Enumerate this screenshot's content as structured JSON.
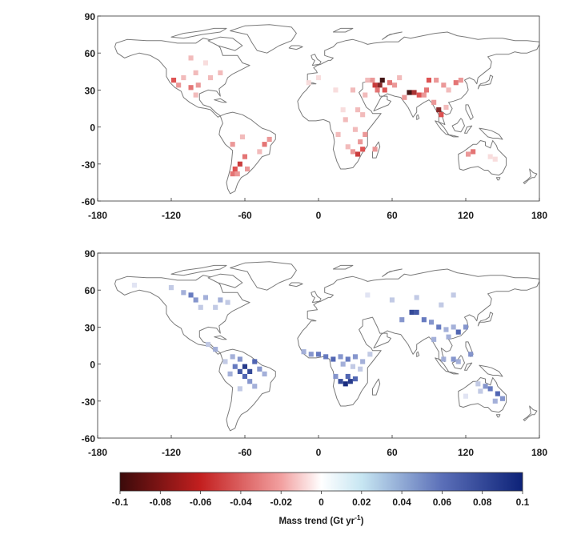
{
  "panels": [
    {
      "id": "loss",
      "x_ticks": [
        "-180",
        "-120",
        "-60",
        "0",
        "60",
        "120",
        "180"
      ],
      "x_tick_values": [
        -180,
        -120,
        -60,
        0,
        60,
        120,
        180
      ],
      "y_ticks": [
        "90",
        "60",
        "30",
        "0",
        "-30",
        "-60"
      ],
      "y_tick_values": [
        90,
        60,
        30,
        0,
        -30,
        -60
      ],
      "xlim": [
        -180,
        180
      ],
      "ylim": [
        -60,
        90
      ],
      "cells": [
        {
          "lon": 52,
          "lat": 38,
          "v": -0.1
        },
        {
          "lon": 50,
          "lat": 34,
          "v": -0.08
        },
        {
          "lon": 46,
          "lat": 34,
          "v": -0.06
        },
        {
          "lon": 54,
          "lat": 30,
          "v": -0.05
        },
        {
          "lon": 58,
          "lat": 36,
          "v": -0.04
        },
        {
          "lon": 44,
          "lat": 38,
          "v": -0.03
        },
        {
          "lon": 62,
          "lat": 34,
          "v": -0.03
        },
        {
          "lon": 48,
          "lat": 30,
          "v": -0.04
        },
        {
          "lon": 40,
          "lat": 38,
          "v": -0.02
        },
        {
          "lon": 74,
          "lat": 28,
          "v": -0.1
        },
        {
          "lon": 78,
          "lat": 28,
          "v": -0.07
        },
        {
          "lon": 82,
          "lat": 26,
          "v": -0.05
        },
        {
          "lon": 88,
          "lat": 30,
          "v": -0.04
        },
        {
          "lon": 90,
          "lat": 38,
          "v": -0.05
        },
        {
          "lon": 96,
          "lat": 38,
          "v": -0.03
        },
        {
          "lon": 102,
          "lat": 34,
          "v": -0.03
        },
        {
          "lon": 112,
          "lat": 36,
          "v": -0.04
        },
        {
          "lon": 116,
          "lat": 38,
          "v": -0.03
        },
        {
          "lon": 106,
          "lat": 30,
          "v": -0.02
        },
        {
          "lon": 70,
          "lat": 24,
          "v": -0.03
        },
        {
          "lon": 98,
          "lat": 14,
          "v": -0.08
        },
        {
          "lon": 100,
          "lat": 10,
          "v": -0.05
        },
        {
          "lon": 94,
          "lat": 20,
          "v": -0.03
        },
        {
          "lon": 104,
          "lat": 16,
          "v": -0.02
        },
        {
          "lon": 86,
          "lat": 26,
          "v": -0.03
        },
        {
          "lon": 66,
          "lat": 40,
          "v": -0.02
        },
        {
          "lon": 38,
          "lat": 26,
          "v": -0.02
        },
        {
          "lon": 28,
          "lat": 30,
          "v": -0.02
        },
        {
          "lon": 14,
          "lat": 30,
          "v": -0.01
        },
        {
          "lon": 32,
          "lat": 14,
          "v": -0.02
        },
        {
          "lon": 36,
          "lat": 10,
          "v": -0.02
        },
        {
          "lon": 22,
          "lat": 6,
          "v": -0.02
        },
        {
          "lon": 30,
          "lat": -2,
          "v": -0.02
        },
        {
          "lon": 38,
          "lat": -6,
          "v": -0.03
        },
        {
          "lon": 34,
          "lat": -12,
          "v": -0.03
        },
        {
          "lon": 36,
          "lat": -18,
          "v": -0.05
        },
        {
          "lon": 32,
          "lat": -22,
          "v": -0.06
        },
        {
          "lon": 28,
          "lat": -20,
          "v": -0.03
        },
        {
          "lon": 24,
          "lat": -16,
          "v": -0.02
        },
        {
          "lon": 46,
          "lat": -18,
          "v": -0.03
        },
        {
          "lon": 16,
          "lat": -6,
          "v": -0.02
        },
        {
          "lon": 20,
          "lat": 14,
          "v": -0.01
        },
        {
          "lon": -118,
          "lat": 38,
          "v": -0.05
        },
        {
          "lon": -114,
          "lat": 34,
          "v": -0.03
        },
        {
          "lon": -104,
          "lat": 32,
          "v": -0.04
        },
        {
          "lon": -98,
          "lat": 34,
          "v": -0.03
        },
        {
          "lon": -110,
          "lat": 40,
          "v": -0.02
        },
        {
          "lon": -100,
          "lat": 44,
          "v": -0.02
        },
        {
          "lon": -88,
          "lat": 40,
          "v": -0.02
        },
        {
          "lon": -80,
          "lat": 44,
          "v": -0.02
        },
        {
          "lon": -100,
          "lat": 26,
          "v": -0.02
        },
        {
          "lon": -104,
          "lat": 56,
          "v": -0.02
        },
        {
          "lon": -92,
          "lat": 52,
          "v": -0.01
        },
        {
          "lon": -60,
          "lat": -24,
          "v": -0.04
        },
        {
          "lon": -64,
          "lat": -30,
          "v": -0.06
        },
        {
          "lon": -68,
          "lat": -34,
          "v": -0.05
        },
        {
          "lon": -70,
          "lat": -38,
          "v": -0.04
        },
        {
          "lon": -66,
          "lat": -38,
          "v": -0.03
        },
        {
          "lon": -58,
          "lat": -34,
          "v": -0.03
        },
        {
          "lon": -44,
          "lat": -14,
          "v": -0.04
        },
        {
          "lon": -40,
          "lat": -10,
          "v": -0.03
        },
        {
          "lon": -70,
          "lat": -14,
          "v": -0.03
        },
        {
          "lon": -62,
          "lat": -8,
          "v": -0.02
        },
        {
          "lon": -48,
          "lat": -20,
          "v": -0.02
        },
        {
          "lon": 126,
          "lat": -20,
          "v": -0.04
        },
        {
          "lon": 122,
          "lat": -22,
          "v": -0.03
        },
        {
          "lon": 140,
          "lat": -24,
          "v": -0.01
        },
        {
          "lon": 144,
          "lat": -26,
          "v": -0.01
        },
        {
          "lon": -8,
          "lat": 36,
          "v": -0.01
        },
        {
          "lon": 0,
          "lat": 40,
          "v": -0.01
        }
      ]
    },
    {
      "id": "gain",
      "x_ticks": [
        "-180",
        "-120",
        "-60",
        "0",
        "60",
        "120",
        "180"
      ],
      "x_tick_values": [
        -180,
        -120,
        -60,
        0,
        60,
        120,
        180
      ],
      "y_ticks": [
        "90",
        "60",
        "30",
        "0",
        "-30",
        "-60"
      ],
      "y_tick_values": [
        90,
        60,
        30,
        0,
        -30,
        -60
      ],
      "xlim": [
        -180,
        180
      ],
      "ylim": [
        -60,
        90
      ],
      "cells": [
        {
          "lon": -60,
          "lat": -2,
          "v": 0.09
        },
        {
          "lon": -56,
          "lat": -6,
          "v": 0.08
        },
        {
          "lon": -64,
          "lat": -6,
          "v": 0.07
        },
        {
          "lon": -52,
          "lat": 2,
          "v": 0.06
        },
        {
          "lon": -60,
          "lat": -10,
          "v": 0.06
        },
        {
          "lon": -68,
          "lat": -2,
          "v": 0.05
        },
        {
          "lon": -48,
          "lat": -4,
          "v": 0.04
        },
        {
          "lon": -64,
          "lat": 4,
          "v": 0.04
        },
        {
          "lon": -70,
          "lat": 6,
          "v": 0.03
        },
        {
          "lon": -56,
          "lat": -14,
          "v": 0.04
        },
        {
          "lon": -52,
          "lat": -18,
          "v": 0.03
        },
        {
          "lon": -44,
          "lat": -8,
          "v": 0.03
        },
        {
          "lon": -72,
          "lat": -8,
          "v": 0.03
        },
        {
          "lon": -76,
          "lat": 2,
          "v": 0.02
        },
        {
          "lon": -64,
          "lat": -20,
          "v": 0.02
        },
        {
          "lon": -84,
          "lat": 12,
          "v": 0.03
        },
        {
          "lon": -90,
          "lat": 16,
          "v": 0.02
        },
        {
          "lon": 22,
          "lat": -16,
          "v": 0.1
        },
        {
          "lon": 26,
          "lat": -14,
          "v": 0.09
        },
        {
          "lon": 18,
          "lat": -14,
          "v": 0.08
        },
        {
          "lon": 30,
          "lat": -12,
          "v": 0.06
        },
        {
          "lon": 24,
          "lat": -10,
          "v": 0.06
        },
        {
          "lon": 14,
          "lat": -10,
          "v": 0.04
        },
        {
          "lon": 0,
          "lat": 8,
          "v": 0.05
        },
        {
          "lon": -6,
          "lat": 8,
          "v": 0.04
        },
        {
          "lon": 6,
          "lat": 6,
          "v": 0.05
        },
        {
          "lon": 12,
          "lat": 4,
          "v": 0.06
        },
        {
          "lon": 18,
          "lat": 6,
          "v": 0.04
        },
        {
          "lon": 24,
          "lat": 4,
          "v": 0.05
        },
        {
          "lon": 30,
          "lat": 6,
          "v": 0.04
        },
        {
          "lon": -12,
          "lat": 10,
          "v": 0.03
        },
        {
          "lon": 36,
          "lat": 2,
          "v": 0.03
        },
        {
          "lon": 20,
          "lat": 0,
          "v": 0.03
        },
        {
          "lon": 34,
          "lat": -4,
          "v": 0.02
        },
        {
          "lon": 28,
          "lat": -2,
          "v": 0.02
        },
        {
          "lon": 42,
          "lat": 8,
          "v": 0.02
        },
        {
          "lon": 76,
          "lat": 42,
          "v": 0.08
        },
        {
          "lon": 80,
          "lat": 42,
          "v": 0.07
        },
        {
          "lon": 68,
          "lat": 36,
          "v": 0.04
        },
        {
          "lon": 86,
          "lat": 36,
          "v": 0.05
        },
        {
          "lon": 92,
          "lat": 34,
          "v": 0.04
        },
        {
          "lon": 98,
          "lat": 30,
          "v": 0.05
        },
        {
          "lon": 104,
          "lat": 28,
          "v": 0.03
        },
        {
          "lon": 110,
          "lat": 30,
          "v": 0.03
        },
        {
          "lon": 114,
          "lat": 26,
          "v": 0.06
        },
        {
          "lon": 120,
          "lat": 30,
          "v": 0.04
        },
        {
          "lon": 106,
          "lat": 22,
          "v": 0.03
        },
        {
          "lon": 110,
          "lat": 4,
          "v": 0.04
        },
        {
          "lon": 114,
          "lat": 2,
          "v": 0.03
        },
        {
          "lon": 102,
          "lat": 4,
          "v": 0.03
        },
        {
          "lon": 124,
          "lat": 8,
          "v": 0.04
        },
        {
          "lon": 94,
          "lat": 20,
          "v": 0.03
        },
        {
          "lon": 100,
          "lat": 48,
          "v": 0.02
        },
        {
          "lon": 60,
          "lat": 52,
          "v": 0.02
        },
        {
          "lon": 80,
          "lat": 54,
          "v": 0.02
        },
        {
          "lon": 40,
          "lat": 56,
          "v": 0.01
        },
        {
          "lon": 110,
          "lat": 56,
          "v": 0.02
        },
        {
          "lon": -104,
          "lat": 56,
          "v": 0.05
        },
        {
          "lon": -100,
          "lat": 52,
          "v": 0.04
        },
        {
          "lon": -110,
          "lat": 58,
          "v": 0.03
        },
        {
          "lon": -92,
          "lat": 54,
          "v": 0.03
        },
        {
          "lon": -80,
          "lat": 52,
          "v": 0.03
        },
        {
          "lon": -74,
          "lat": 50,
          "v": 0.02
        },
        {
          "lon": -84,
          "lat": 46,
          "v": 0.02
        },
        {
          "lon": -96,
          "lat": 46,
          "v": 0.02
        },
        {
          "lon": -120,
          "lat": 62,
          "v": 0.02
        },
        {
          "lon": -150,
          "lat": 64,
          "v": 0.01
        },
        {
          "lon": 140,
          "lat": -20,
          "v": 0.05
        },
        {
          "lon": 146,
          "lat": -24,
          "v": 0.06
        },
        {
          "lon": 136,
          "lat": -18,
          "v": 0.04
        },
        {
          "lon": 150,
          "lat": -28,
          "v": 0.04
        },
        {
          "lon": 144,
          "lat": -30,
          "v": 0.03
        },
        {
          "lon": 130,
          "lat": -16,
          "v": 0.02
        },
        {
          "lon": 120,
          "lat": -26,
          "v": 0.01
        },
        {
          "lon": 132,
          "lat": -22,
          "v": 0.02
        }
      ]
    }
  ],
  "colorbar": {
    "min": -0.1,
    "max": 0.1,
    "tick_labels": [
      "-0.1",
      "-0.08",
      "-0.06",
      "-0.04",
      "-0.02",
      "0",
      "0.02",
      "0.04",
      "0.06",
      "0.08",
      "0.1"
    ],
    "tick_values": [
      -0.1,
      -0.08,
      -0.06,
      -0.04,
      -0.02,
      0,
      0.02,
      0.04,
      0.06,
      0.08,
      0.1
    ],
    "title": "Mass trend (Gt yr",
    "title_sup": "-1",
    "title_end": ")"
  },
  "colors": {
    "min_color": "#3b0a0a",
    "neg_mid": "#d93838",
    "zero": "#ffffff",
    "pos_mid": "#4f66b6",
    "max_color": "#0d2278",
    "coastline": "#7a7a7a"
  }
}
